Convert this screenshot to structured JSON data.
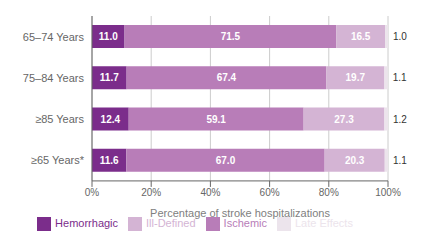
{
  "chart_data": {
    "type": "bar",
    "orientation": "horizontal",
    "stacked": true,
    "data_labels": true,
    "grid": true,
    "legend": "bottom",
    "xlabel": "Percentage of stroke hospitalizations",
    "categories": [
      "65–74 Years",
      "75–84 Years",
      "≥85 Years",
      "≥65 Years*"
    ],
    "xlim": [
      0,
      100
    ],
    "xticks": [
      {
        "value": 0,
        "label": "0%"
      },
      {
        "value": 20,
        "label": "20%"
      },
      {
        "value": 40,
        "label": "40%"
      },
      {
        "value": 60,
        "label": "60%"
      },
      {
        "value": 80,
        "label": "80%"
      },
      {
        "value": 100,
        "label": "100%"
      }
    ],
    "series": [
      {
        "name": "Hemorrhagic",
        "color": "#7b2d8b",
        "values": [
          11.0,
          11.7,
          12.4,
          11.6
        ],
        "value_labels": [
          "11.0",
          "11.7",
          "12.4",
          "11.6"
        ]
      },
      {
        "name": "Ischemic",
        "color": "#b87db8",
        "values": [
          71.5,
          67.4,
          59.1,
          67.0
        ],
        "value_labels": [
          "71.5",
          "67.4",
          "59.1",
          "67.0"
        ]
      },
      {
        "name": "Ill-Defined",
        "color": "#d4b4d4",
        "values": [
          16.5,
          19.7,
          27.3,
          20.3
        ],
        "value_labels": [
          "16.5",
          "19.7",
          "27.3",
          "20.3"
        ]
      },
      {
        "name": "Late Effects",
        "color": "#ece4ec",
        "values": [
          1.0,
          1.1,
          1.2,
          1.1
        ],
        "value_labels": [
          "1.0",
          "1.1",
          "1.2",
          "1.1"
        ]
      }
    ]
  }
}
